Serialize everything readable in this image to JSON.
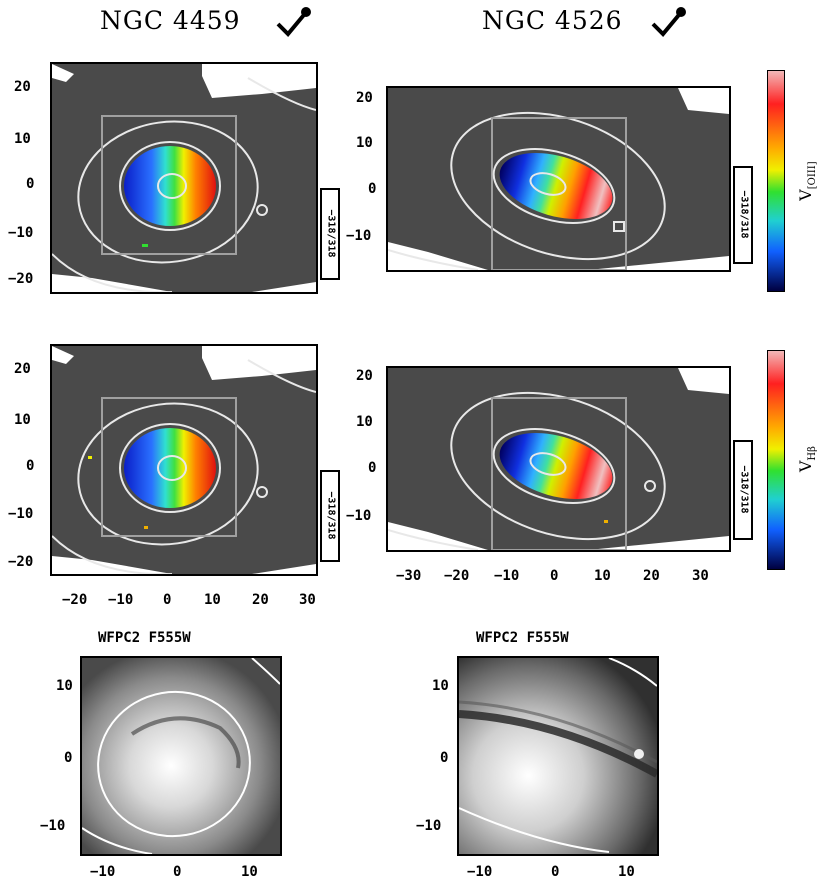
{
  "titles": {
    "left": "NGC 4459",
    "right": "NGC 4526"
  },
  "panels": {
    "left_top": {
      "yticks": [
        "20",
        "10",
        "0",
        "−10",
        "−20"
      ],
      "scale": "−318/318"
    },
    "right_top": {
      "yticks": [
        "20",
        "10",
        "0",
        "−10"
      ],
      "scale": "−318/318"
    },
    "left_mid": {
      "yticks": [
        "20",
        "10",
        "0",
        "−10",
        "−20"
      ],
      "scale": "−318/318",
      "xticks": [
        "−20",
        "−10",
        "0",
        "10",
        "20",
        "30"
      ]
    },
    "right_mid": {
      "yticks": [
        "20",
        "10",
        "0",
        "−10"
      ],
      "scale": "−318/318",
      "xticks": [
        "−30",
        "−20",
        "−10",
        "0",
        "10",
        "20",
        "30"
      ]
    }
  },
  "colorbars": {
    "top": {
      "label": "V",
      "sub": "[OIII]"
    },
    "mid": {
      "label": "V",
      "sub": "Hβ"
    }
  },
  "hst": {
    "left": {
      "title": "WFPC2 F555W",
      "yticks": [
        "10",
        "0",
        "−10"
      ],
      "xticks": [
        "−10",
        "0",
        "10"
      ]
    },
    "right": {
      "title": "WFPC2 F555W",
      "yticks": [
        "10",
        "0",
        "−10"
      ],
      "xticks": [
        "−10",
        "0",
        "10"
      ]
    }
  },
  "colors": {
    "map_bg": "#4a4a4a",
    "contour": "#e8e8e8",
    "box": "#a0a0a0"
  }
}
